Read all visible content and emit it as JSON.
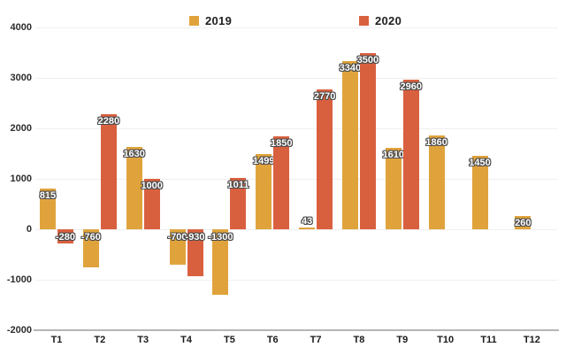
{
  "chart_data": {
    "type": "bar",
    "title": "",
    "xlabel": "",
    "ylabel": "",
    "categories": [
      "T1",
      "T2",
      "T3",
      "T4",
      "T5",
      "T6",
      "T7",
      "T8",
      "T9",
      "T10",
      "T11",
      "T12"
    ],
    "series": [
      {
        "name": "2019",
        "color": "#E0A33C",
        "values": [
          815,
          -760,
          1630,
          -700,
          -1300,
          1499,
          43,
          3340,
          1610,
          1860,
          1450,
          260
        ]
      },
      {
        "name": "2020",
        "color": "#D9603F",
        "values": [
          -280,
          2280,
          1000,
          -930,
          1011,
          1850,
          2770,
          3500,
          2960,
          null,
          null,
          null
        ]
      }
    ],
    "ylim": [
      -2000,
      4000
    ],
    "yticks": [
      4000,
      3000,
      2000,
      1000,
      0,
      -1000,
      -2000
    ],
    "grid": true,
    "legend_position": "top",
    "colors": {
      "gridline": "#efefef",
      "axis_line": "#b5b5b5",
      "tick_label": "#2d2d2d",
      "bar_label_text": "#ffffff",
      "bar_label_outline": "#4a4a4a",
      "background": "#ffffff"
    }
  }
}
